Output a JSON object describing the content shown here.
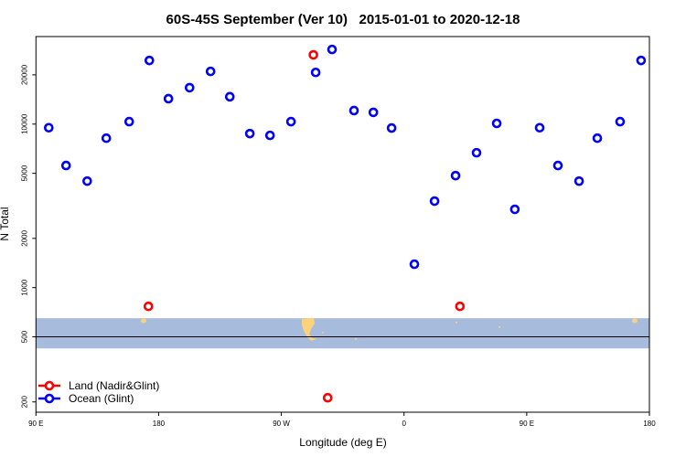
{
  "chart_data": {
    "type": "scatter",
    "title": "60S-45S September (Ver 10)   2015-01-01 to 2020-12-18",
    "xlabel": "Longitude (deg E)",
    "ylabel": "N Total",
    "xlim": [
      90,
      540
    ],
    "ylim": [
      173,
      34300
    ],
    "y_scale": "log",
    "grid": false,
    "x_ticks": [
      90,
      180,
      270,
      360,
      450,
      540
    ],
    "x_tick_labels": [
      "90 E",
      "180",
      "90 W",
      "0",
      "90 E",
      "180"
    ],
    "y_ticks": [
      200,
      500,
      1000,
      2000,
      5000,
      10000,
      20000
    ],
    "y_tick_labels": [
      "200",
      "500",
      "1000",
      "2000",
      "5000",
      "10000",
      "20000"
    ],
    "reference_line": 500,
    "latitude_band": {
      "range": [
        425,
        650
      ],
      "color": "#a7bcdc",
      "land_color": "#fcd27a"
    },
    "legend_position": "bottom-left",
    "series": [
      {
        "name": "Land (Nadir&Glint)",
        "color": "#ff0000",
        "x": [
          172.5,
          293.5,
          304,
          401
        ],
        "y": [
          768,
          26500,
          212,
          768
        ]
      },
      {
        "name": "Ocean (Glint)",
        "color": "#0000ff",
        "x": [
          99.4,
          112.1,
          127.6,
          141.6,
          158.4,
          173.2,
          187.2,
          202.7,
          218.1,
          232.2,
          246.9,
          261.7,
          277.1,
          295.2,
          307.2,
          323.3,
          337.5,
          350.9,
          367.6,
          382.4,
          397.8,
          413.2,
          428.0,
          441.3,
          459.5,
          472.9,
          488.4,
          501.8,
          518.5,
          533.9
        ],
        "y": [
          9500,
          5580,
          4480,
          8200,
          10350,
          24500,
          14300,
          16700,
          21000,
          14700,
          8750,
          8530,
          10350,
          20700,
          28600,
          12100,
          11800,
          9460,
          1390,
          3380,
          4840,
          6680,
          10100,
          3010,
          9500,
          5580,
          4480,
          8200,
          10350,
          24500
        ]
      }
    ]
  }
}
